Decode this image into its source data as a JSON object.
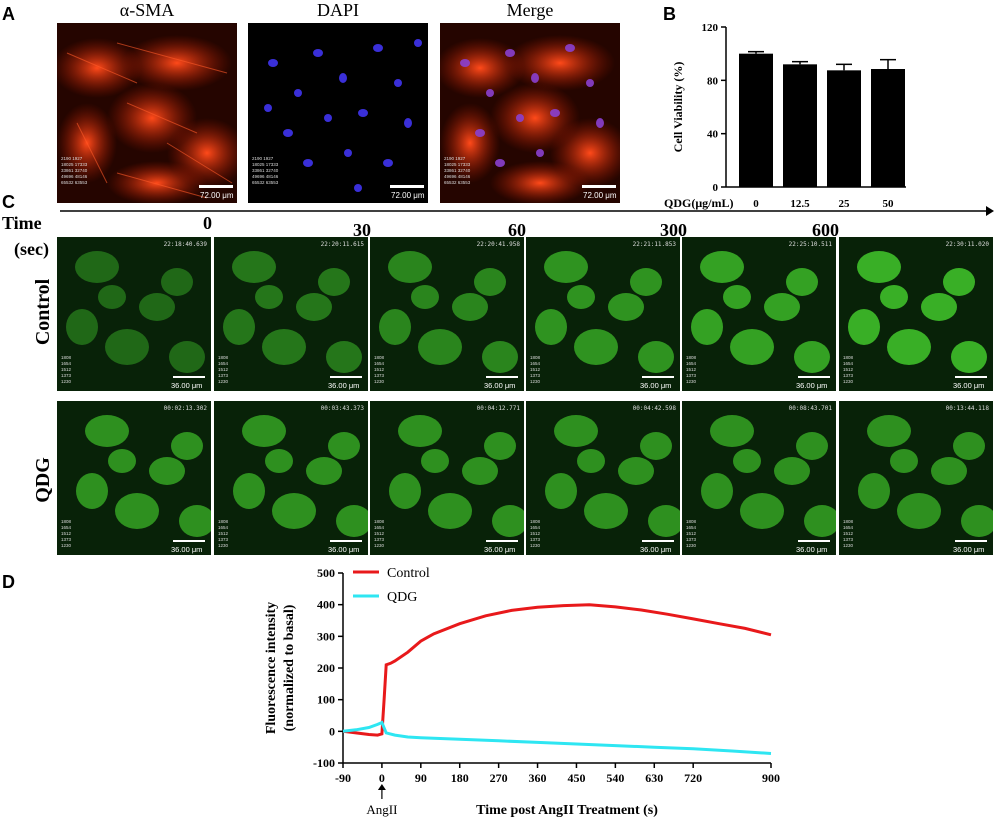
{
  "panels": {
    "a": {
      "letter": "A",
      "titles": [
        "α-SMA",
        "DAPI",
        "Merge"
      ],
      "scale": "72.00 μm",
      "legend_values": [
        [
          "2190",
          "1927"
        ],
        [
          "18025",
          "17333"
        ],
        [
          "33861",
          "32740"
        ],
        [
          "49696",
          "48146"
        ],
        [
          "65532",
          "63553"
        ]
      ]
    },
    "b": {
      "letter": "B"
    },
    "c": {
      "letter": "C",
      "time_label": "Time",
      "sec_label": "(sec)",
      "times": [
        "0",
        "30",
        "60",
        "300",
        "600"
      ],
      "row_labels": [
        "Control",
        "QDG"
      ],
      "scale": "36.00 μm",
      "control_timestamps": [
        "22:18:40.639",
        "22:20:11.615",
        "22:20:41.958",
        "22:21:11.853",
        "22:25:10.511",
        "22:30:11.020"
      ],
      "qdg_timestamps": [
        "00:02:13.302",
        "00:03:43.373",
        "00:04:12.771",
        "00:04:42.598",
        "00:08:43.701",
        "00:13:44.118"
      ],
      "legend_values": [
        "1808",
        "1654",
        "1512",
        "1373",
        "1230"
      ]
    },
    "d": {
      "letter": "D",
      "arrow_label": "AngII"
    }
  },
  "chart_data": [
    {
      "type": "bar",
      "ylabel": "Cell Viability (%)",
      "xlabel": "QDG(μg/mL)",
      "categories": [
        "0",
        "12.5",
        "25",
        "50"
      ],
      "values": [
        100,
        92,
        87.5,
        88.5
      ],
      "errors": [
        1.5,
        2,
        4.5,
        7
      ],
      "ylim": [
        0,
        120
      ],
      "yticks": [
        0,
        40,
        80,
        120
      ],
      "color": "#000000"
    },
    {
      "type": "line",
      "xlabel": "Time post AngII Treatment (s)",
      "ylabel": "Fluorescence intensity",
      "ylabel2": "(normalized to basal)",
      "xlim": [
        -90,
        900
      ],
      "ylim": [
        -100,
        500
      ],
      "xticks": [
        -90,
        0,
        90,
        180,
        270,
        360,
        450,
        540,
        630,
        720,
        900
      ],
      "yticks": [
        -100,
        0,
        100,
        200,
        300,
        400,
        500
      ],
      "legend": "top-left",
      "series": [
        {
          "name": "Control",
          "color": "#e8191b",
          "x": [
            -90,
            -60,
            -30,
            -10,
            0,
            5,
            10,
            20,
            30,
            60,
            90,
            120,
            180,
            240,
            300,
            360,
            420,
            480,
            540,
            600,
            660,
            720,
            780,
            840,
            900
          ],
          "y": [
            0,
            -5,
            -10,
            -12,
            -8,
            100,
            210,
            215,
            222,
            250,
            285,
            308,
            340,
            365,
            382,
            392,
            397,
            400,
            393,
            383,
            370,
            355,
            340,
            325,
            305
          ]
        },
        {
          "name": "QDG",
          "color": "#2ee6f2",
          "x": [
            -90,
            -60,
            -30,
            -10,
            0,
            10,
            30,
            60,
            90,
            180,
            270,
            360,
            450,
            540,
            630,
            720,
            810,
            900
          ],
          "y": [
            0,
            5,
            12,
            22,
            28,
            -5,
            -12,
            -18,
            -20,
            -25,
            -30,
            -35,
            -40,
            -45,
            -50,
            -55,
            -62,
            -70
          ]
        }
      ]
    }
  ]
}
